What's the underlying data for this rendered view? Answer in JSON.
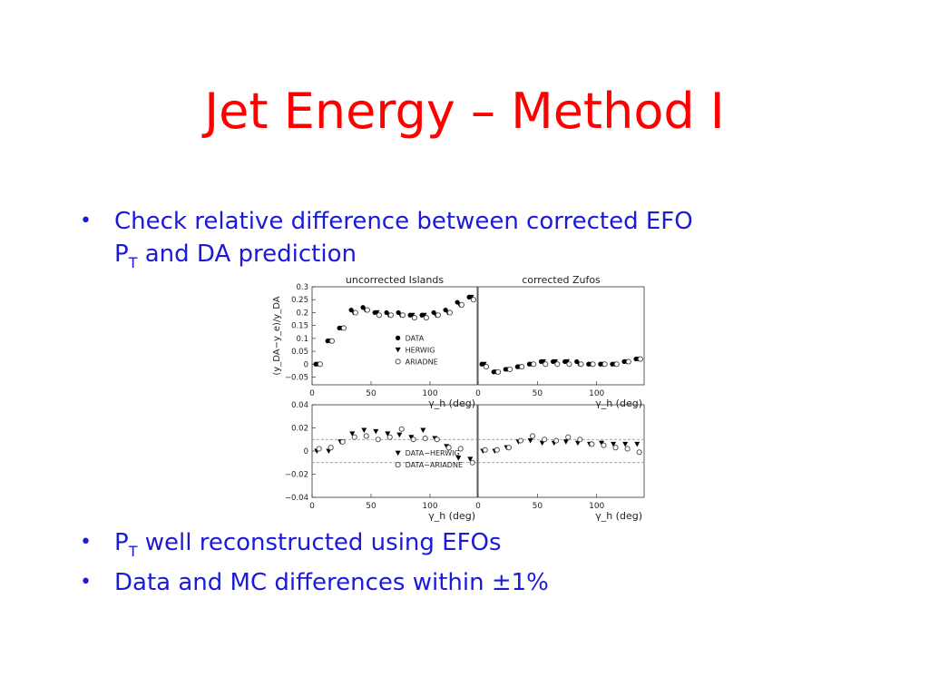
{
  "slide": {
    "title": "Jet Energy – Method I",
    "title_color": "#ff0000",
    "text_color": "#1a1ad8",
    "bullet_glyph": "•",
    "bullets": [
      {
        "main": "Check relative difference between corrected EFO",
        "line2_pre": "P",
        "line2_sub": "T",
        "line2_post": " and DA prediction"
      },
      {
        "pre": "P",
        "sub": "T",
        "post": " well reconstructed using EFOs"
      },
      {
        "pre": "Data and MC differences within ",
        "sym": "±",
        "post": "1%"
      }
    ]
  },
  "chart_data": [
    {
      "type": "scatter",
      "title": "uncorrected Islands",
      "ylabel": "(y_DA−y_e)/y_DA",
      "xlabel": "γ_h (deg)",
      "xlim": [
        0,
        140
      ],
      "ylim": [
        -0.08,
        0.3
      ],
      "yticks": [
        "0.3",
        "0.25",
        "0.2",
        "0.15",
        "0.1",
        "0.05",
        "0",
        "−0.05"
      ],
      "xticks": [
        "0",
        "50",
        "100"
      ],
      "legend": [
        "DATA",
        "HERWIG",
        "ARIADNE"
      ],
      "legend_position": "lower-right",
      "x": [
        5,
        15,
        25,
        35,
        45,
        55,
        65,
        75,
        85,
        95,
        105,
        115,
        125,
        135
      ],
      "series": [
        {
          "name": "DATA",
          "marker": "filled-circle",
          "values": [
            0.0,
            0.09,
            0.14,
            0.21,
            0.22,
            0.2,
            0.2,
            0.2,
            0.19,
            0.19,
            0.2,
            0.21,
            0.24,
            0.26
          ]
        },
        {
          "name": "HERWIG",
          "marker": "filled-triangle",
          "values": [
            0.0,
            0.09,
            0.14,
            0.2,
            0.21,
            0.2,
            0.19,
            0.19,
            0.19,
            0.19,
            0.19,
            0.2,
            0.23,
            0.26
          ]
        },
        {
          "name": "ARIADNE",
          "marker": "open-circle",
          "values": [
            0.0,
            0.09,
            0.14,
            0.2,
            0.21,
            0.19,
            0.19,
            0.19,
            0.18,
            0.18,
            0.19,
            0.2,
            0.23,
            0.25
          ]
        }
      ]
    },
    {
      "type": "scatter",
      "title": "corrected Zufos",
      "xlabel": "γ_h (deg)",
      "xlim": [
        0,
        140
      ],
      "ylim": [
        -0.08,
        0.3
      ],
      "xticks": [
        "0",
        "50",
        "100"
      ],
      "x": [
        5,
        15,
        25,
        35,
        45,
        55,
        65,
        75,
        85,
        95,
        105,
        115,
        125,
        135
      ],
      "series": [
        {
          "name": "DATA",
          "marker": "filled-circle",
          "values": [
            0.0,
            -0.03,
            -0.02,
            -0.01,
            0.0,
            0.01,
            0.01,
            0.01,
            0.01,
            0.0,
            0.0,
            0.0,
            0.01,
            0.02
          ]
        },
        {
          "name": "HERWIG",
          "marker": "filled-triangle",
          "values": [
            0.0,
            -0.03,
            -0.02,
            -0.01,
            0.0,
            0.01,
            0.01,
            0.01,
            0.0,
            0.0,
            0.0,
            0.0,
            0.01,
            0.02
          ]
        },
        {
          "name": "ARIADNE",
          "marker": "open-circle",
          "values": [
            -0.01,
            -0.03,
            -0.02,
            -0.01,
            0.0,
            0.0,
            0.0,
            0.0,
            0.0,
            0.0,
            0.0,
            0.0,
            0.01,
            0.02
          ]
        }
      ]
    },
    {
      "type": "scatter",
      "xlabel": "γ_h (deg)",
      "xlim": [
        0,
        140
      ],
      "ylim": [
        -0.04,
        0.04
      ],
      "yticks": [
        "0.04",
        "0.02",
        "0",
        "−0.02",
        "−0.04"
      ],
      "xticks": [
        "0",
        "50",
        "100"
      ],
      "reference_lines": [
        0.01,
        -0.01
      ],
      "legend": [
        "DATA−HERWIG",
        "DATA−ARIADNE"
      ],
      "legend_position": "lower-right",
      "x": [
        5,
        15,
        25,
        35,
        45,
        55,
        65,
        75,
        85,
        95,
        105,
        115,
        125,
        135
      ],
      "series": [
        {
          "name": "DATA−HERWIG",
          "marker": "filled-triangle",
          "values": [
            0.0,
            0.0,
            0.008,
            0.015,
            0.018,
            0.017,
            0.015,
            0.014,
            0.012,
            0.018,
            0.011,
            0.004,
            -0.006,
            -0.007
          ]
        },
        {
          "name": "DATA−ARIADNE",
          "marker": "open-circle",
          "values": [
            0.002,
            0.003,
            0.008,
            0.012,
            0.013,
            0.01,
            0.012,
            0.019,
            0.01,
            0.011,
            0.01,
            0.003,
            0.002,
            -0.01
          ]
        }
      ]
    },
    {
      "type": "scatter",
      "xlabel": "γ_h (deg)",
      "xlim": [
        0,
        140
      ],
      "ylim": [
        -0.04,
        0.04
      ],
      "xticks": [
        "0",
        "50",
        "100"
      ],
      "reference_lines": [
        0.01,
        -0.01
      ],
      "x": [
        5,
        15,
        25,
        35,
        45,
        55,
        65,
        75,
        85,
        95,
        105,
        115,
        125,
        135
      ],
      "series": [
        {
          "name": "DATA−HERWIG",
          "marker": "filled-triangle",
          "values": [
            0.0,
            0.0,
            0.003,
            0.008,
            0.009,
            0.007,
            0.007,
            0.008,
            0.007,
            0.006,
            0.007,
            0.006,
            0.006,
            0.006
          ]
        },
        {
          "name": "DATA−ARIADNE",
          "marker": "open-circle",
          "values": [
            0.001,
            0.001,
            0.003,
            0.009,
            0.013,
            0.01,
            0.009,
            0.012,
            0.01,
            0.006,
            0.005,
            0.003,
            0.002,
            -0.001
          ]
        }
      ]
    }
  ]
}
